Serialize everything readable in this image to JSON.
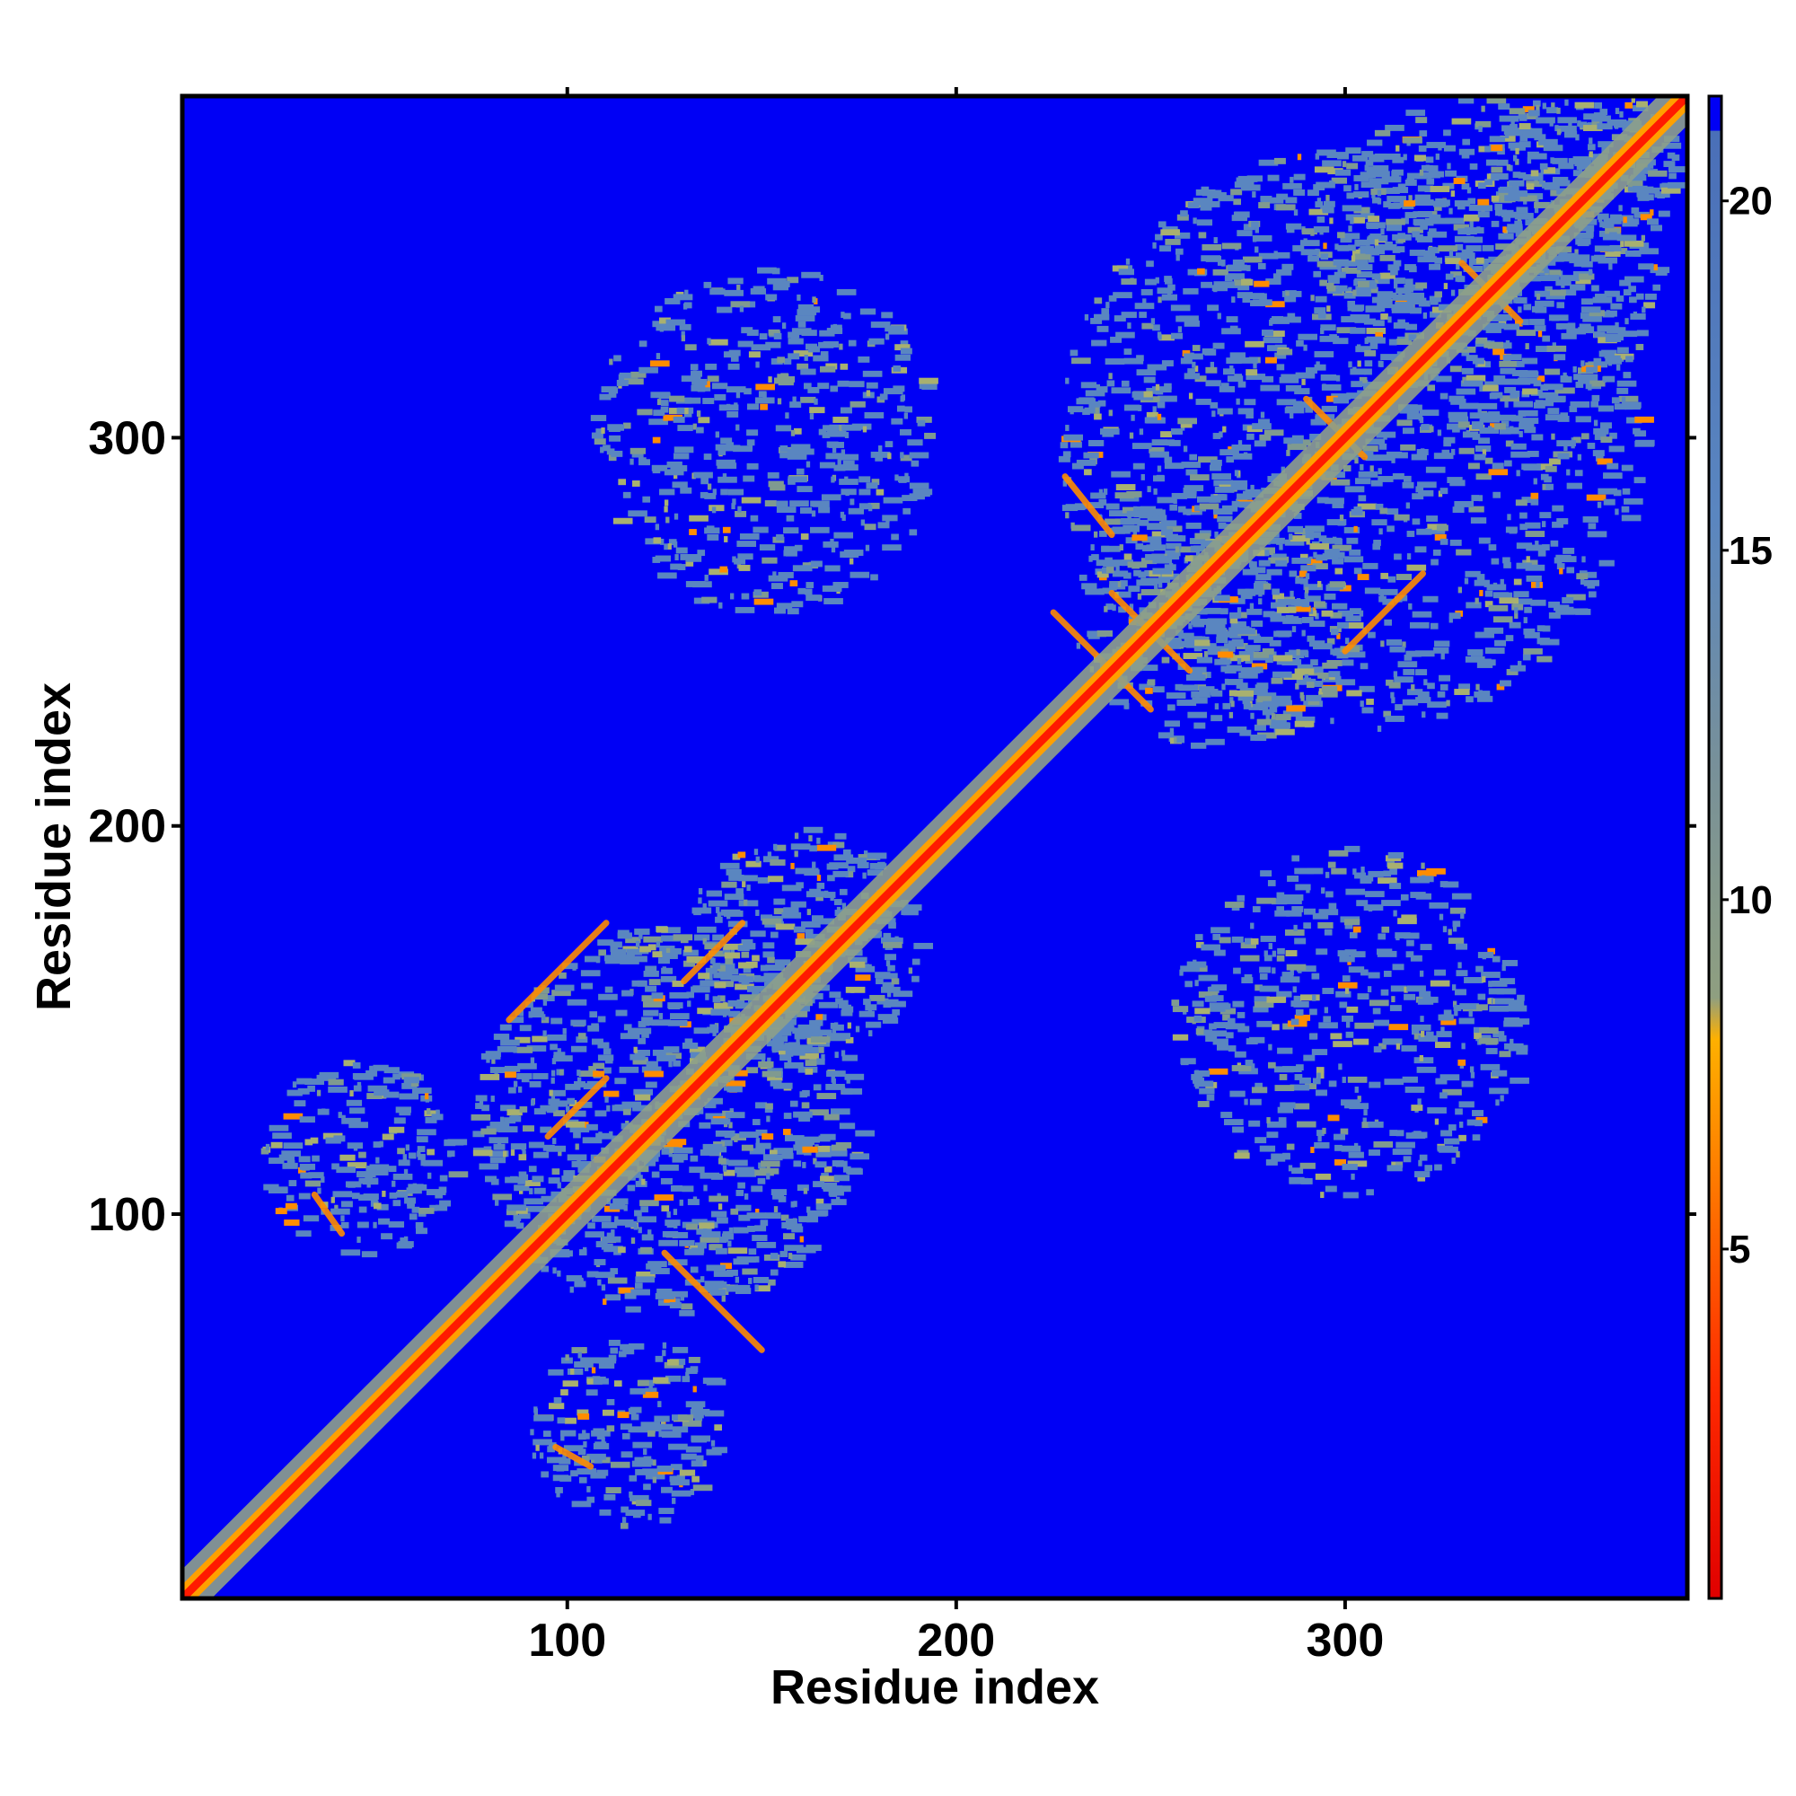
{
  "chart_data": {
    "type": "heatmap",
    "title": "",
    "xlabel": "Residue index",
    "ylabel": "Residue index",
    "xlim": [
      1,
      388
    ],
    "ylim": [
      1,
      388
    ],
    "x_ticks": [
      100,
      200,
      300
    ],
    "y_ticks": [
      100,
      200,
      300
    ],
    "grid": false,
    "colorbar": {
      "range": [
        0,
        21.5
      ],
      "ticks": [
        5,
        10,
        15,
        20
      ],
      "stops": [
        {
          "value": 0,
          "color": "#e00000"
        },
        {
          "value": 3,
          "color": "#ff2a00"
        },
        {
          "value": 6,
          "color": "#ff7a00"
        },
        {
          "value": 8,
          "color": "#ffb000"
        },
        {
          "value": 8.6,
          "color": "#8f9f80"
        },
        {
          "value": 12,
          "color": "#77909a"
        },
        {
          "value": 15.5,
          "color": "#5a86c0"
        },
        {
          "value": 21,
          "color": "#4a6fb8"
        },
        {
          "value": 21.01,
          "color": "#0000f5"
        },
        {
          "value": 21.5,
          "color": "#0000f5"
        }
      ]
    },
    "background_color": "#0000f5",
    "domain_fill_color": "#5a86c0",
    "diagonal_color": "#ff1a00",
    "domains": [
      {
        "name": "",
        "start": 1,
        "end": 210
      },
      {
        "name": "",
        "start": 215,
        "end": 388
      }
    ]
  }
}
